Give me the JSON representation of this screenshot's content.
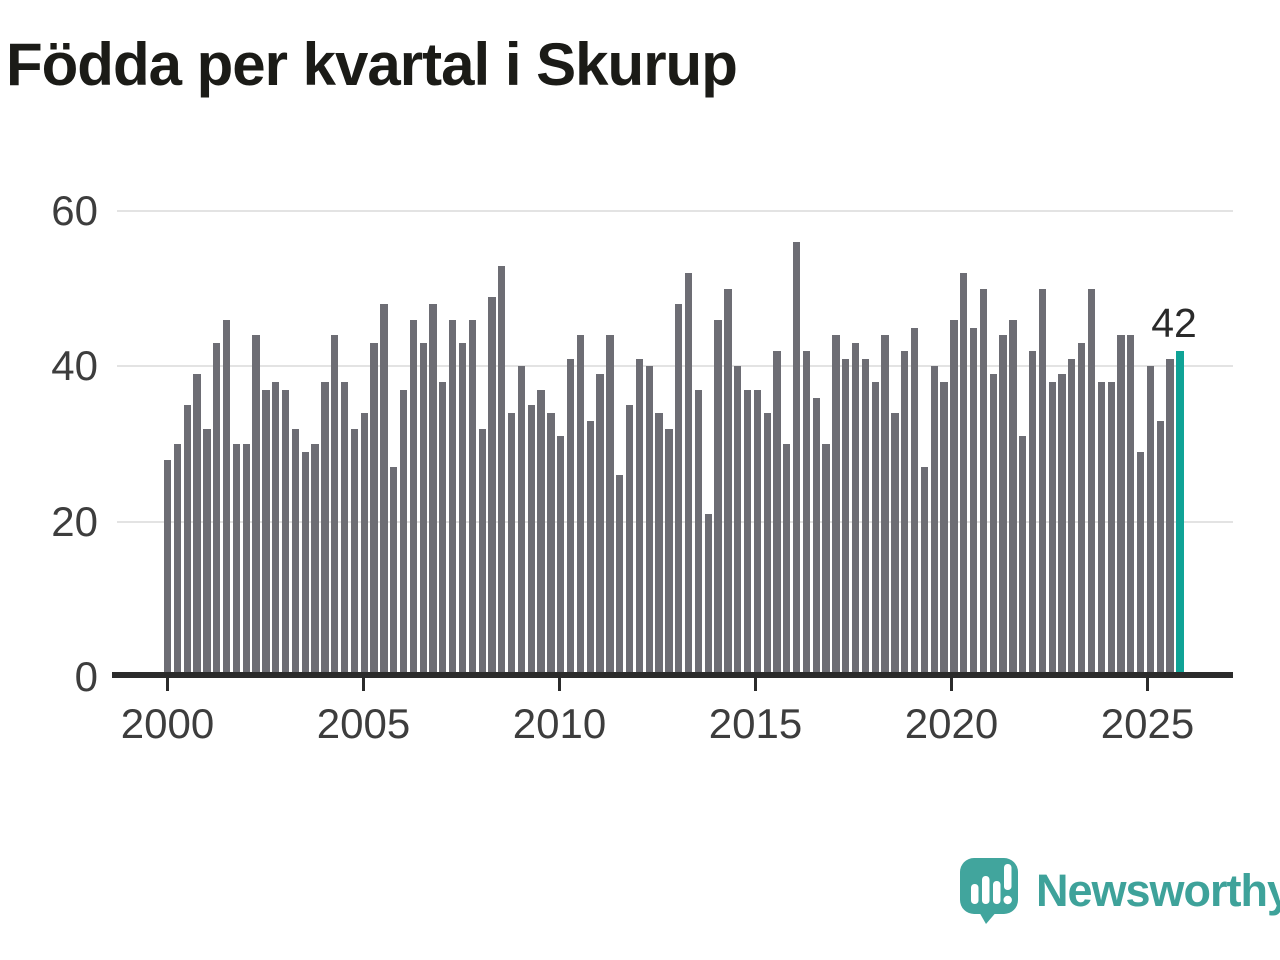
{
  "title": "Födda per kvartal i Skurup",
  "annotation": {
    "label": "42"
  },
  "branding": {
    "logo_text": "Newsworthy",
    "logo_color": "#41a59d",
    "text_color": "#3ea29a"
  },
  "colors": {
    "bar": "#6d6d74",
    "highlight": "#0fa396",
    "gridline": "#e3e3e3",
    "axis": "#2b2b2b",
    "title_text": "#1b1b17",
    "axis_text": "#3d3d3d"
  },
  "chart_data": {
    "type": "bar",
    "title": "Födda per kvartal i Skurup",
    "x_unit": "quarter",
    "x_start": "2000-Q1",
    "x_end": "2025-Q4",
    "xlabel": "",
    "ylabel": "",
    "ylim": [
      0,
      60
    ],
    "grid": "horizontal",
    "y_ticks": [
      0,
      20,
      40,
      60
    ],
    "y_tick_labels": [
      "0",
      "20",
      "40",
      "60"
    ],
    "x_tick_labels": [
      "2000",
      "2005",
      "2010",
      "2015",
      "2020",
      "2025"
    ],
    "values": [
      28,
      30,
      35,
      39,
      32,
      43,
      46,
      30,
      30,
      44,
      37,
      38,
      37,
      32,
      29,
      30,
      38,
      44,
      38,
      32,
      34,
      43,
      48,
      27,
      37,
      46,
      43,
      48,
      38,
      46,
      43,
      46,
      32,
      49,
      53,
      34,
      40,
      35,
      37,
      34,
      31,
      41,
      44,
      33,
      39,
      44,
      26,
      35,
      41,
      40,
      34,
      32,
      48,
      52,
      37,
      21,
      46,
      50,
      40,
      37,
      37,
      34,
      42,
      30,
      56,
      42,
      36,
      30,
      44,
      41,
      43,
      41,
      38,
      44,
      34,
      42,
      45,
      27,
      40,
      38,
      46,
      52,
      45,
      50,
      39,
      44,
      46,
      31,
      42,
      50,
      38,
      39,
      41,
      43,
      50,
      38,
      38,
      44,
      44,
      29,
      40,
      33,
      41,
      42
    ],
    "highlight_last_bar": {
      "value": 42,
      "label": "42",
      "color": "#0fa396"
    },
    "legend": "none"
  }
}
